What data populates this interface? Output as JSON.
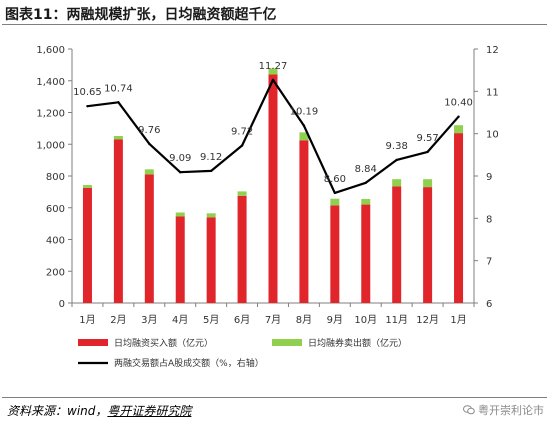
{
  "title": "图表11：两融规模扩张，日均融资额超千亿",
  "source": {
    "prefix": "资料来源：wind，",
    "org": "粤开证券研究院"
  },
  "watermark": "粤开崇利论市",
  "chart_data": {
    "type": "bar",
    "categories": [
      "1月",
      "2月",
      "3月",
      "4月",
      "5月",
      "6月",
      "7月",
      "8月",
      "9月",
      "10月",
      "11月",
      "12月",
      "1月"
    ],
    "series": [
      {
        "name": "日均融资买入额（亿元）",
        "type": "bar",
        "stack": "a",
        "axis": "left",
        "color": "#e0252b",
        "values": [
          725,
          1030,
          810,
          545,
          540,
          675,
          1440,
          1025,
          615,
          620,
          735,
          730,
          1070
        ]
      },
      {
        "name": "日均融券卖出额（亿元）",
        "type": "bar",
        "stack": "a",
        "axis": "left",
        "color": "#8fd14f",
        "values": [
          18,
          22,
          32,
          25,
          25,
          28,
          38,
          50,
          42,
          35,
          45,
          50,
          50
        ]
      },
      {
        "name": "两融交易额占A股成交额（%，右轴）",
        "type": "line",
        "axis": "right",
        "color": "#000000",
        "values": [
          10.65,
          10.74,
          9.76,
          9.09,
          9.12,
          9.72,
          11.27,
          10.19,
          8.6,
          8.84,
          9.38,
          9.57,
          10.4
        ],
        "labels": [
          "10.65",
          "10.74",
          "9.76",
          "9.09",
          "9.12",
          "9.72",
          "11.27",
          "10.19",
          "8.60",
          "8.84",
          "9.38",
          "9.57",
          "10.40"
        ]
      }
    ],
    "y_left": {
      "min": 0,
      "max": 1600,
      "ticks": [
        "0",
        "200",
        "400",
        "600",
        "800",
        "1,000",
        "1,200",
        "1,400",
        "1,600"
      ]
    },
    "y_right": {
      "min": 6,
      "max": 12,
      "ticks": [
        "6",
        "7",
        "8",
        "9",
        "10",
        "11",
        "12"
      ]
    },
    "grid": false,
    "legend": "bottom"
  }
}
